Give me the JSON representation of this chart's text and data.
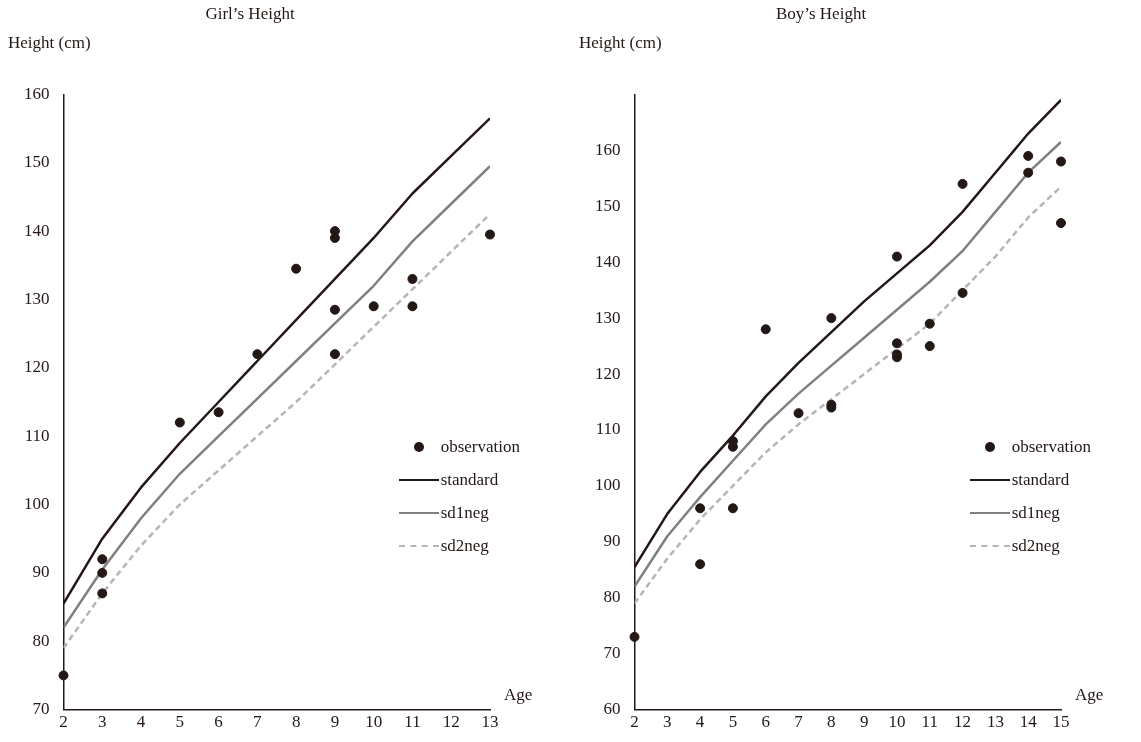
{
  "chart_data": [
    {
      "type": "line",
      "title": "Girl’s Height",
      "xlabel": "Age",
      "ylabel": "Height (cm)",
      "xlim": [
        2,
        13
      ],
      "xticks": [
        2,
        3,
        4,
        5,
        6,
        7,
        8,
        9,
        10,
        11,
        12,
        13
      ],
      "ylim": [
        70,
        160
      ],
      "yticks": [
        70,
        80,
        90,
        100,
        110,
        120,
        130,
        140,
        150,
        160
      ],
      "grid": false,
      "legend": "right",
      "series": [
        {
          "name": "observation",
          "type": "scatter",
          "marker": "circle",
          "color": "#231815",
          "x": [
            2,
            3,
            3,
            3,
            5,
            6,
            7,
            8,
            9,
            9,
            9,
            9,
            10,
            11,
            11,
            13
          ],
          "values": [
            75,
            92,
            90,
            87,
            112,
            113.5,
            122,
            134.5,
            140,
            139,
            128.5,
            122,
            129,
            133,
            129,
            139.5
          ]
        },
        {
          "name": "standard",
          "line_style": "solid",
          "color": "#231815",
          "x": [
            2,
            3,
            4,
            5,
            6,
            7,
            8,
            9,
            10,
            11,
            12,
            13
          ],
          "values": [
            85.5,
            95,
            102.5,
            109,
            115,
            121,
            127,
            133,
            139,
            145.5,
            151,
            156.5
          ]
        },
        {
          "name": "sd1neg",
          "line_style": "solid",
          "color": "#808080",
          "x": [
            2,
            3,
            4,
            5,
            6,
            7,
            8,
            9,
            10,
            11,
            12,
            13
          ],
          "values": [
            82,
            90.5,
            98,
            104.5,
            110,
            115.5,
            121,
            126.5,
            132,
            138.5,
            144,
            149.5
          ]
        },
        {
          "name": "sd2neg",
          "line_style": "dashed",
          "color": "#b5b5b5",
          "x": [
            2,
            3,
            4,
            5,
            6,
            7,
            8,
            9,
            10,
            11,
            12,
            13
          ],
          "values": [
            79,
            87,
            94,
            100,
            105,
            110,
            115,
            120.5,
            126,
            131.5,
            137,
            142.5
          ]
        }
      ]
    },
    {
      "type": "line",
      "title": "Boy’s Height",
      "xlabel": "Age",
      "ylabel": "Height (cm)",
      "xlim": [
        2,
        15
      ],
      "xticks": [
        2,
        3,
        4,
        5,
        6,
        7,
        8,
        9,
        10,
        11,
        12,
        13,
        14,
        15
      ],
      "ylim": [
        60,
        170
      ],
      "yticks": [
        60,
        70,
        80,
        90,
        100,
        110,
        120,
        130,
        140,
        150,
        160
      ],
      "grid": false,
      "legend": "right",
      "series": [
        {
          "name": "observation",
          "type": "scatter",
          "marker": "circle",
          "color": "#231815",
          "x": [
            2,
            4,
            4,
            5,
            5,
            5,
            6,
            7,
            8,
            8,
            8,
            10,
            10,
            10,
            10,
            11,
            11,
            12,
            12,
            14,
            14,
            15,
            15
          ],
          "values": [
            73,
            96,
            86,
            108,
            107,
            96,
            128,
            113,
            130,
            114.5,
            114,
            141,
            125.5,
            123.5,
            123,
            129,
            125,
            154,
            134.5,
            159,
            156,
            158,
            147
          ]
        },
        {
          "name": "standard",
          "line_style": "solid",
          "color": "#231815",
          "x": [
            2,
            3,
            4,
            5,
            6,
            7,
            8,
            9,
            10,
            11,
            12,
            13,
            14,
            15
          ],
          "values": [
            85.5,
            95,
            102.5,
            109,
            116,
            122,
            127.5,
            133,
            138,
            143,
            149,
            156,
            163,
            169
          ]
        },
        {
          "name": "sd1neg",
          "line_style": "solid",
          "color": "#808080",
          "x": [
            2,
            3,
            4,
            5,
            6,
            7,
            8,
            9,
            10,
            11,
            12,
            13,
            14,
            15
          ],
          "values": [
            82,
            91,
            98,
            104.5,
            111,
            116.5,
            121.5,
            126.5,
            131.5,
            136.5,
            142,
            149,
            156,
            161.5
          ]
        },
        {
          "name": "sd2neg",
          "line_style": "dashed",
          "color": "#b5b5b5",
          "x": [
            2,
            3,
            4,
            5,
            6,
            7,
            8,
            9,
            10,
            11,
            12,
            13,
            14,
            15
          ],
          "values": [
            79,
            87,
            94,
            100,
            106,
            111,
            115.5,
            120,
            124.5,
            129,
            135,
            141,
            148,
            153.5
          ]
        }
      ]
    }
  ]
}
